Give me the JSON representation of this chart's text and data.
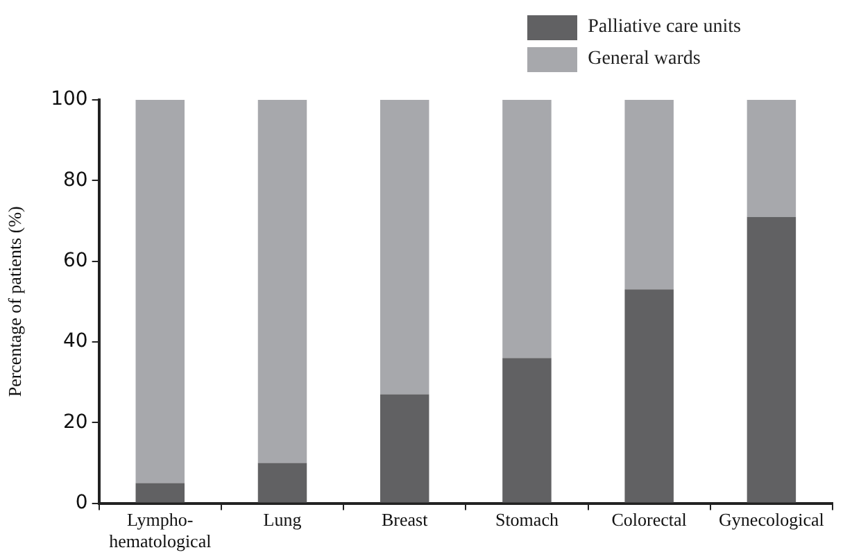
{
  "chart_data": {
    "type": "bar",
    "stacked": true,
    "ylabel": "Percentage of patients (%)",
    "categories": [
      "Lympho-\nhematological",
      "Lung",
      "Breast",
      "Stomach",
      "Colorectal",
      "Gynecological"
    ],
    "series": [
      {
        "name": "Palliative care units",
        "color": "#616163",
        "values": [
          5,
          10,
          27,
          36,
          53,
          71
        ]
      },
      {
        "name": "General wards",
        "color": "#a7a8ac",
        "values": [
          95,
          90,
          73,
          64,
          47,
          29
        ]
      }
    ],
    "ylim": [
      0,
      100
    ],
    "yticks": [
      0,
      20,
      40,
      60,
      80,
      100
    ],
    "grid": false,
    "legend": "top right"
  }
}
